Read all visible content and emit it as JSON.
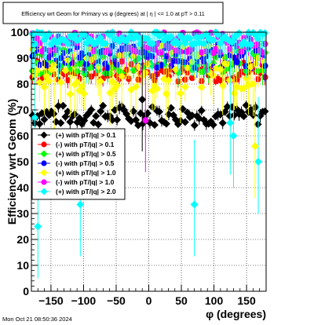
{
  "chart_data": {
    "type": "scatter",
    "title": "Efficiency wrt Geom for Primary vs φ (degrees) at | η | <= 1.0 at pT > 0.11",
    "xlabel": "φ (degrees)",
    "ylabel": "Efficiency wrt Geom (%)",
    "xlim": [
      -180,
      180
    ],
    "ylim": [
      0,
      100
    ],
    "x_ticks": [
      -150,
      -100,
      -50,
      0,
      50,
      100,
      150
    ],
    "y_ticks": [
      0,
      10,
      20,
      30,
      40,
      50,
      60,
      70,
      80,
      90,
      100
    ],
    "grid": true,
    "legend_placement": "left, middle",
    "series": [
      {
        "name": "(+) with pT/|q| > 0.1",
        "color": "#000000",
        "marker": "diamond",
        "band": [
          64,
          72
        ],
        "err": 2
      },
      {
        "name": "(-) with pT/|q| > 0.1",
        "color": "#ff0000",
        "marker": "circle",
        "band": [
          81,
          89
        ],
        "err": 3
      },
      {
        "name": "(+) with pT/|q| > 0.5",
        "color": "#00ff00",
        "marker": "diamond",
        "band": [
          84,
          94
        ],
        "err": 5
      },
      {
        "name": "(-) with pT/|q| > 0.5",
        "color": "#0000ff",
        "marker": "circle",
        "band": [
          86,
          96
        ],
        "err": 5
      },
      {
        "name": "(+) with pT/|q| > 1.0",
        "color": "#ffff00",
        "marker": "diamond",
        "band": [
          76,
          96
        ],
        "err": 10
      },
      {
        "name": "(-) with pT/|q| > 1.0",
        "color": "#ff00ff",
        "marker": "circle",
        "band": [
          92,
          100
        ],
        "err": 8
      },
      {
        "name": "(+) with pT/|q| > 2.0",
        "color": "#00ffff",
        "marker": "diamond",
        "band": [
          95,
          100
        ],
        "err": 12
      }
    ],
    "outliers": [
      {
        "series": 6,
        "x": -170,
        "y": 25
      },
      {
        "series": 6,
        "x": -105,
        "y": 33.5
      },
      {
        "series": 6,
        "x": 70,
        "y": 33.5
      },
      {
        "series": 6,
        "x": 130,
        "y": 60
      },
      {
        "series": 6,
        "x": 168,
        "y": 50
      },
      {
        "series": 6,
        "x": -175,
        "y": 67
      },
      {
        "series": 6,
        "x": 125,
        "y": 65
      },
      {
        "series": 4,
        "x": 163,
        "y": 56
      },
      {
        "series": 4,
        "x": -145,
        "y": 62
      },
      {
        "series": 5,
        "x": -5,
        "y": 66
      },
      {
        "series": 0,
        "x": -10,
        "y": 74
      }
    ]
  },
  "footer": {
    "timestamp": "Mon Oct 21 08:50:36 2024"
  }
}
